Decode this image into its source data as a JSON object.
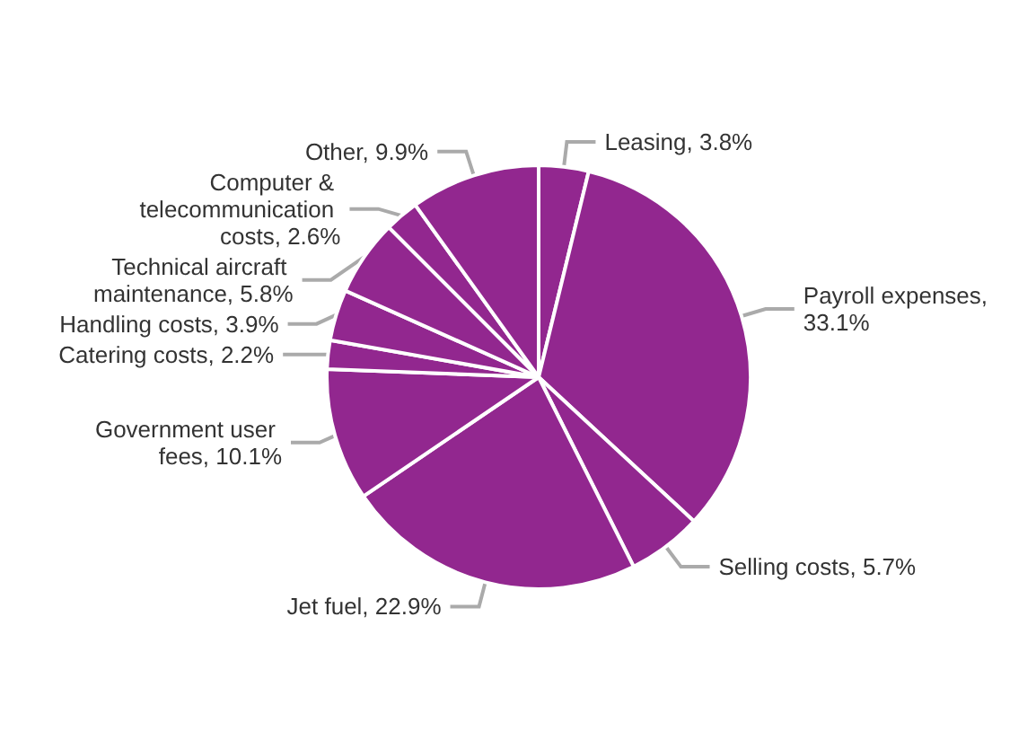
{
  "chart_data": {
    "type": "pie",
    "categories": [
      "Leasing, 3.8%",
      "Payroll expenses, 33.1%",
      "Selling costs, 5.7%",
      "Jet fuel, 22.9%",
      "Government user fees, 10.1%",
      "Catering costs, 2.2%",
      "Handling costs, 3.9%",
      "Technical aircraft maintenance, 5.8%",
      "Computer & telecommunication costs, 2.6%",
      "Other, 9.9%"
    ],
    "values": [
      3.8,
      33.1,
      5.7,
      22.9,
      10.1,
      2.2,
      3.9,
      5.8,
      2.6,
      9.9
    ],
    "colors": [
      "#92278f",
      "#92278f",
      "#92278f",
      "#92278f",
      "#92278f",
      "#92278f",
      "#92278f",
      "#92278f",
      "#92278f",
      "#92278f"
    ]
  }
}
